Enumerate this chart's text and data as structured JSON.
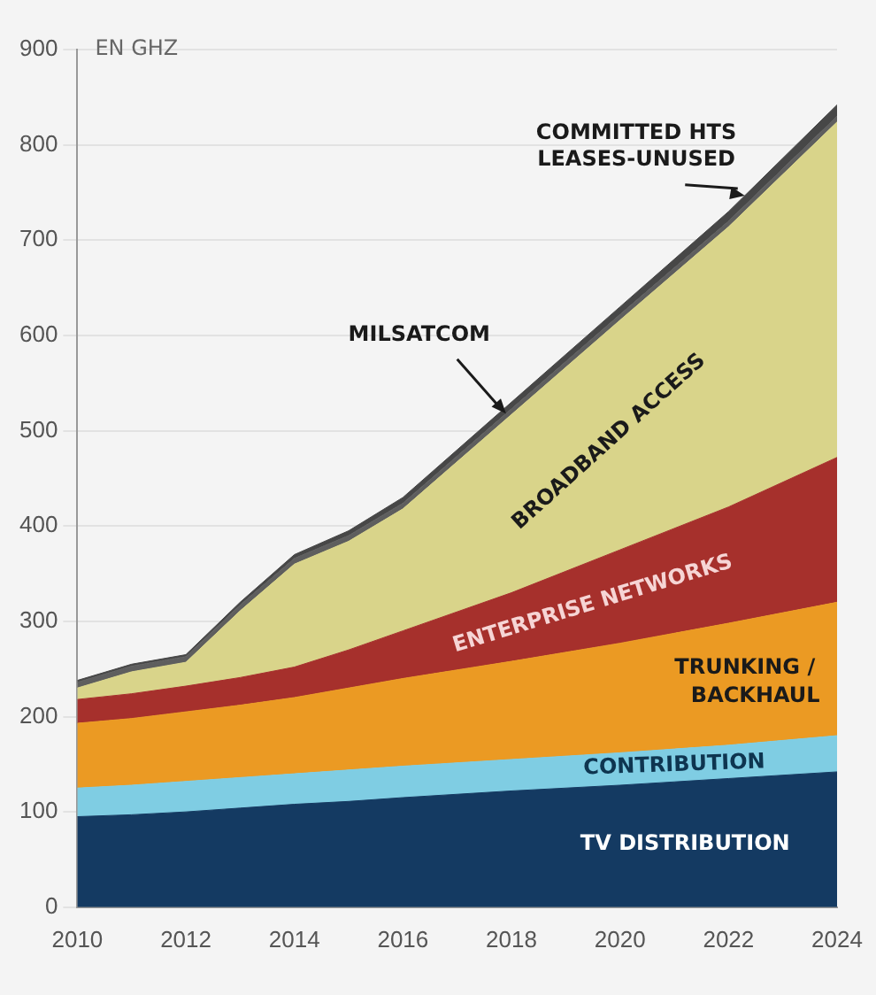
{
  "chart_data": {
    "type": "area",
    "stacked": true,
    "ylabel": "EN GHZ",
    "x": [
      2010,
      2011,
      2012,
      2013,
      2014,
      2015,
      2016,
      2018,
      2020,
      2022,
      2024
    ],
    "xlim": [
      2010,
      2024
    ],
    "xticks": [
      2010,
      2012,
      2014,
      2016,
      2018,
      2020,
      2022,
      2024
    ],
    "ylim": [
      0,
      900
    ],
    "yticks": [
      0,
      100,
      200,
      300,
      400,
      500,
      600,
      700,
      800,
      900
    ],
    "grid": "y",
    "legend": false,
    "series": [
      {
        "name": "TV DISTRIBUTION",
        "color": "#143a62",
        "values": [
          95,
          97,
          100,
          104,
          108,
          111,
          115,
          122,
          128,
          135,
          142
        ]
      },
      {
        "name": "CONTRIBUTION",
        "color": "#7fcde3",
        "values": [
          30,
          31,
          32,
          32,
          32,
          33,
          33,
          33,
          34,
          35,
          38
        ]
      },
      {
        "name": "TRUNKING / BACKHAUL",
        "color": "#eb9a23",
        "values": [
          68,
          70,
          73,
          76,
          80,
          86,
          92,
          103,
          115,
          128,
          140
        ]
      },
      {
        "name": "ENTERPRISE NETWORKS",
        "color": "#a6302c",
        "values": [
          25,
          26,
          27,
          29,
          32,
          40,
          50,
          72,
          98,
          122,
          152
        ]
      },
      {
        "name": "BROADBAND ACCESS",
        "color": "#d9d48a",
        "values": [
          12,
          23,
          25,
          70,
          108,
          114,
          128,
          187,
          241,
          294,
          352
        ]
      },
      {
        "name": "MILSATCOM",
        "color": "#5e5e5e",
        "values": [
          6,
          6,
          6,
          6,
          6,
          6,
          6,
          6,
          6,
          6,
          6
        ]
      },
      {
        "name": "COMMITTED HTS LEASES-UNUSED",
        "color": "#474747",
        "values": [
          2,
          2,
          2,
          3,
          4,
          5,
          6,
          7,
          8,
          10,
          12
        ]
      }
    ]
  }
}
